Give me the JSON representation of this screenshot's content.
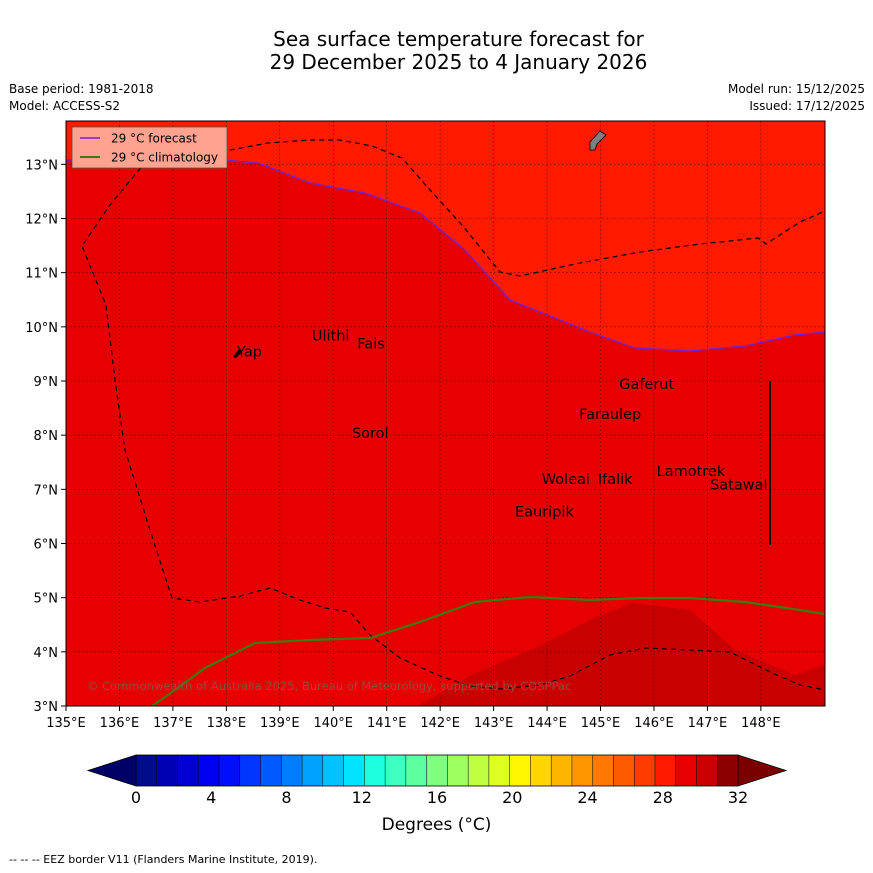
{
  "title": {
    "line1": "Sea surface temperature forecast for",
    "line2": "29 December 2025 to 4 January 2026"
  },
  "meta_left": {
    "base_period": "Base period: 1981-2018",
    "model": "Model: ACCESS-S2"
  },
  "meta_right": {
    "model_run": "Model run: 15/12/2025",
    "issued": "Issued: 17/12/2025"
  },
  "legend": {
    "forecast": "29 °C  forecast",
    "climatology": "29 °C  climatology",
    "forecast_color": "#7a1fc9",
    "climatology_color": "#3d7a10"
  },
  "map": {
    "lon_ticks": [
      "135°E",
      "136°E",
      "137°E",
      "138°E",
      "139°E",
      "140°E",
      "141°E",
      "142°E",
      "143°E",
      "144°E",
      "145°E",
      "146°E",
      "147°E",
      "148°E"
    ],
    "lat_ticks": [
      "3°N",
      "4°N",
      "5°N",
      "6°N",
      "7°N",
      "8°N",
      "9°N",
      "10°N",
      "11°N",
      "12°N",
      "13°N"
    ],
    "lon_range": [
      135,
      149.2
    ],
    "lat_range": [
      3,
      13.8
    ],
    "places": [
      {
        "name": "Yap",
        "lon": 138.2,
        "lat": 9.45
      },
      {
        "name": "Ulithi",
        "lon": 139.6,
        "lat": 9.75
      },
      {
        "name": "Fais",
        "lon": 140.45,
        "lat": 9.6
      },
      {
        "name": "Gaferut",
        "lon": 145.35,
        "lat": 8.85
      },
      {
        "name": "Faraulep",
        "lon": 144.6,
        "lat": 8.3
      },
      {
        "name": "Sorol",
        "lon": 140.35,
        "lat": 7.95
      },
      {
        "name": "Woleai",
        "lon": 143.9,
        "lat": 7.1
      },
      {
        "name": "Ifalik",
        "lon": 144.95,
        "lat": 7.1
      },
      {
        "name": "Lamotrek",
        "lon": 146.05,
        "lat": 7.25
      },
      {
        "name": "Satawal",
        "lon": 147.05,
        "lat": 7.0
      },
      {
        "name": "Eauripik",
        "lon": 143.4,
        "lat": 6.5
      }
    ],
    "copyright": "© Commonwealth of Australia 2025, Bureau of Meteorology, supported by COSPPac",
    "colors": {
      "warm": "#ff1a00",
      "mid": "#e60000",
      "deep": "#c80000",
      "eez": "#000000"
    }
  },
  "colorbar": {
    "ticks": [
      "0",
      "4",
      "8",
      "12",
      "16",
      "20",
      "24",
      "28",
      "32"
    ],
    "tick_values": [
      0,
      4,
      8,
      12,
      16,
      20,
      24,
      28,
      32
    ],
    "range": [
      0,
      32
    ],
    "step": 1,
    "colors": [
      "#000c8a",
      "#0000b4",
      "#0000d2",
      "#0000f0",
      "#000eff",
      "#0036ff",
      "#005aff",
      "#007eff",
      "#00a2ff",
      "#00c2ff",
      "#00e4ff",
      "#1effe0",
      "#3effc0",
      "#5effa0",
      "#7eff80",
      "#9eff60",
      "#beff40",
      "#deff20",
      "#fff500",
      "#ffd600",
      "#ffb400",
      "#ff9600",
      "#ff7800",
      "#ff5a00",
      "#ff3c00",
      "#ff1a00",
      "#e60000",
      "#c80000",
      "#8c0000"
    ],
    "under_color": "#000066",
    "over_color": "#7a0000",
    "label": "Degrees (°C)"
  },
  "footnote": "--  --  -- EEZ border V11 (Flanders Marine Institute, 2019)."
}
